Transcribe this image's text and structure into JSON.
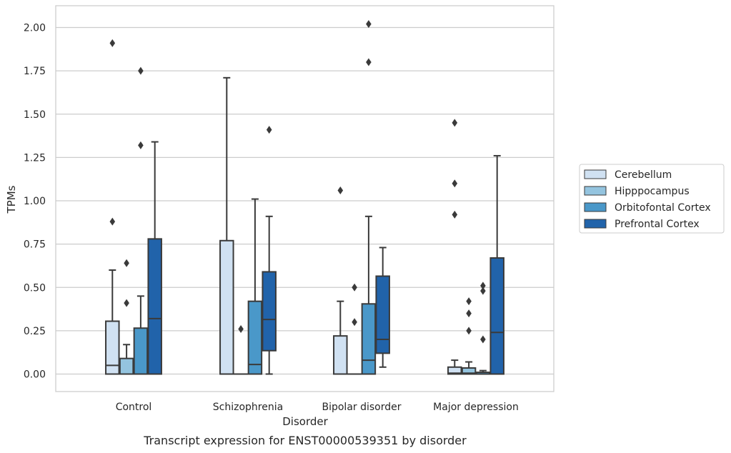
{
  "caption": "Transcript expression for ENST00000539351 by disorder",
  "chart_data": {
    "type": "box",
    "xlabel": "Disorder",
    "ylabel": "TPMs",
    "ylim": [
      -0.1,
      2.12
    ],
    "yticks": [
      "0.00",
      "0.25",
      "0.50",
      "0.75",
      "1.00",
      "1.25",
      "1.50",
      "1.75",
      "2.00"
    ],
    "grid": "horizontal",
    "legend_position": "right",
    "categories": [
      "Control",
      "Schizophrenia",
      "Bipolar disorder",
      "Major depression"
    ],
    "series": [
      {
        "name": "Cerebellum",
        "color": "#d0e1f2",
        "boxes": [
          {
            "q1": 0,
            "median": 0.05,
            "q3": 0.305,
            "whisker_low": 0,
            "whisker_high": 0.6,
            "outliers": [
              0.88,
              1.91
            ]
          },
          {
            "q1": 0,
            "median": 0,
            "q3": 0.77,
            "whisker_low": 0,
            "whisker_high": 1.71,
            "outliers": []
          },
          {
            "q1": 0,
            "median": 0,
            "q3": 0.22,
            "whisker_low": 0,
            "whisker_high": 0.42,
            "outliers": [
              1.06
            ]
          },
          {
            "q1": 0,
            "median": 0.005,
            "q3": 0.04,
            "whisker_low": 0,
            "whisker_high": 0.08,
            "outliers": [
              0.92,
              1.1,
              1.45
            ]
          }
        ]
      },
      {
        "name": "Hipppocampus",
        "color": "#94c4df",
        "boxes": [
          {
            "q1": 0,
            "median": 0,
            "q3": 0.09,
            "whisker_low": 0,
            "whisker_high": 0.17,
            "outliers": [
              0.41,
              0.64
            ]
          },
          {
            "q1": 0,
            "median": 0,
            "q3": 0,
            "whisker_low": 0,
            "whisker_high": 0,
            "outliers": [
              0.26
            ]
          },
          {
            "q1": 0,
            "median": 0,
            "q3": 0,
            "whisker_low": 0,
            "whisker_high": 0,
            "outliers": [
              0.3,
              0.5
            ]
          },
          {
            "q1": 0,
            "median": 0.005,
            "q3": 0.035,
            "whisker_low": 0,
            "whisker_high": 0.07,
            "outliers": [
              0.25,
              0.35,
              0.42
            ]
          }
        ]
      },
      {
        "name": "Orbitofontal Cortex",
        "color": "#4a98c9",
        "boxes": [
          {
            "q1": 0,
            "median": 0,
            "q3": 0.265,
            "whisker_low": 0,
            "whisker_high": 0.45,
            "outliers": [
              1.32,
              1.75
            ]
          },
          {
            "q1": 0,
            "median": 0.055,
            "q3": 0.42,
            "whisker_low": 0,
            "whisker_high": 1.01,
            "outliers": []
          },
          {
            "q1": 0,
            "median": 0.08,
            "q3": 0.405,
            "whisker_low": 0,
            "whisker_high": 0.91,
            "outliers": [
              1.8,
              2.02
            ]
          },
          {
            "q1": 0,
            "median": 0,
            "q3": 0.01,
            "whisker_low": 0,
            "whisker_high": 0.02,
            "outliers": [
              0.2,
              0.48,
              0.51
            ]
          }
        ]
      },
      {
        "name": "Prefrontal Cortex",
        "color": "#2163aa",
        "boxes": [
          {
            "q1": 0,
            "median": 0.32,
            "q3": 0.78,
            "whisker_low": 0,
            "whisker_high": 1.34,
            "outliers": []
          },
          {
            "q1": 0.135,
            "median": 0.315,
            "q3": 0.59,
            "whisker_low": 0,
            "whisker_high": 0.91,
            "outliers": [
              1.41
            ]
          },
          {
            "q1": 0.12,
            "median": 0.2,
            "q3": 0.565,
            "whisker_low": 0.04,
            "whisker_high": 0.73,
            "outliers": []
          },
          {
            "q1": 0,
            "median": 0.24,
            "q3": 0.67,
            "whisker_low": 0,
            "whisker_high": 1.26,
            "outliers": []
          }
        ]
      }
    ]
  }
}
